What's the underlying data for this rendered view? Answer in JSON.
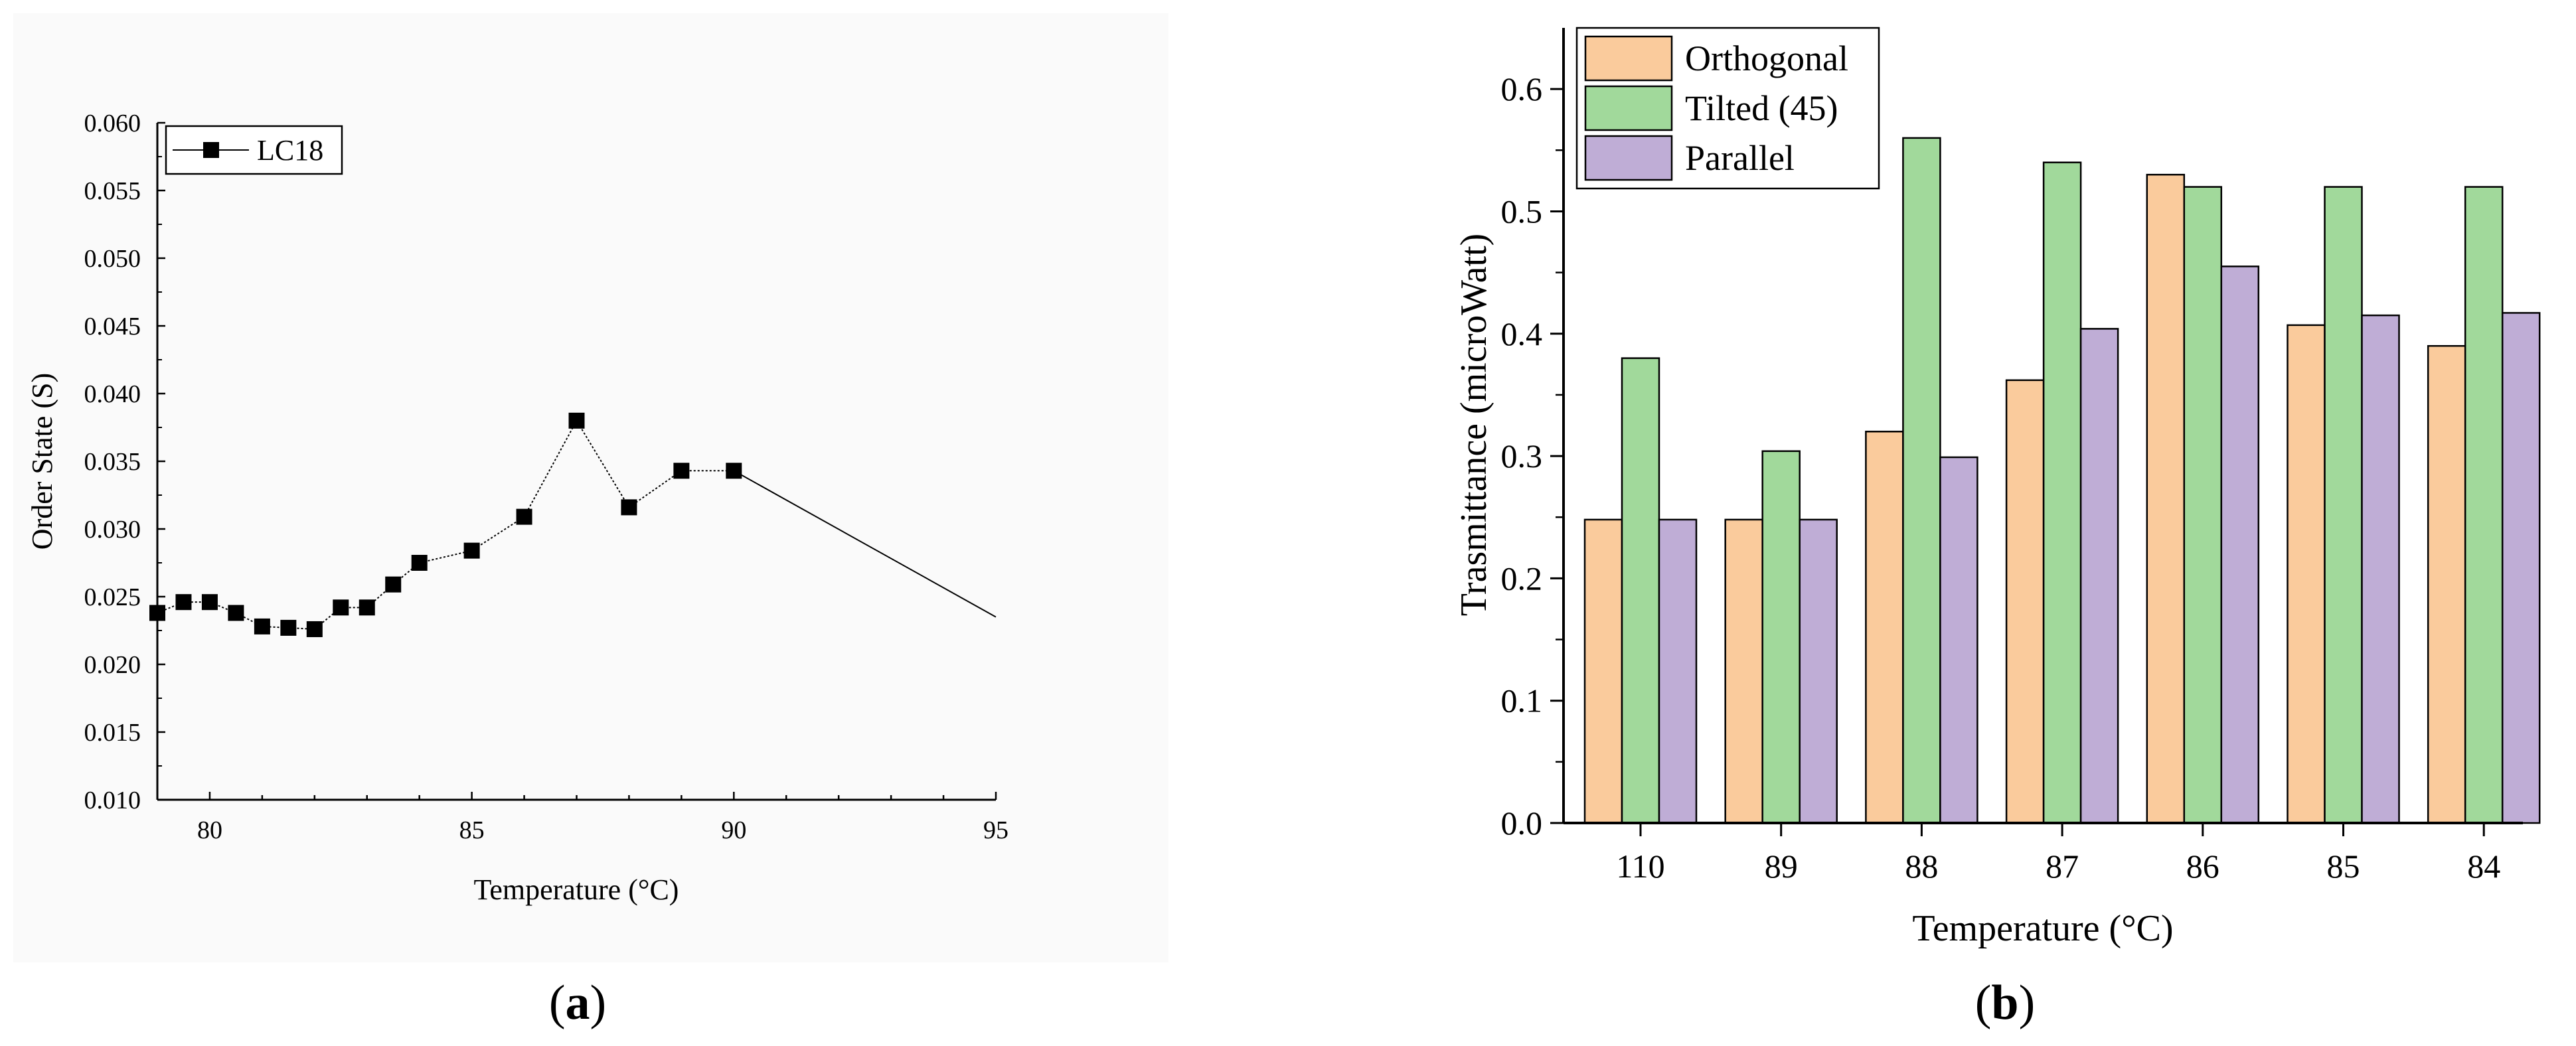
{
  "panels": [
    {
      "label_open": "(",
      "label_letter": "a",
      "label_close": ")"
    },
    {
      "label_open": "(",
      "label_letter": "b",
      "label_close": ")"
    }
  ],
  "chart_data": [
    {
      "type": "line",
      "panel": "a",
      "title": "",
      "xlabel": "Temperature (°C)",
      "ylabel": "Order State (S)",
      "xlim": [
        79,
        95
      ],
      "ylim": [
        0.01,
        0.06
      ],
      "xticks": [
        80,
        85,
        90,
        95
      ],
      "yticks": [
        0.01,
        0.015,
        0.02,
        0.025,
        0.03,
        0.035,
        0.04,
        0.045,
        0.05,
        0.055,
        0.06
      ],
      "ytick_labels": [
        "0.010",
        "0.015",
        "0.020",
        "0.025",
        "0.030",
        "0.035",
        "0.040",
        "0.045",
        "0.050",
        "0.055",
        "0.060"
      ],
      "legend_position": "top-left",
      "series": [
        {
          "name": "LC18",
          "marker": "square",
          "x": [
            79,
            79.5,
            80,
            80.5,
            81,
            81.5,
            82,
            82.5,
            83,
            83.5,
            84,
            85,
            86,
            87,
            88,
            89,
            90
          ],
          "y": [
            0.0238,
            0.0246,
            0.0246,
            0.0238,
            0.0228,
            0.0227,
            0.0226,
            0.0242,
            0.0242,
            0.0259,
            0.0275,
            0.0284,
            0.0309,
            0.038,
            0.0316,
            0.0343,
            0.0343
          ],
          "trailing_line_to": [
            95,
            0.0235
          ]
        }
      ]
    },
    {
      "type": "bar",
      "panel": "b",
      "title": "",
      "xlabel": "Temperature (°C)",
      "ylabel": "Trasmittance (microWatt)",
      "categories": [
        "110",
        "89",
        "88",
        "87",
        "86",
        "85",
        "84"
      ],
      "ylim": [
        0.0,
        0.65
      ],
      "yticks": [
        0.0,
        0.1,
        0.2,
        0.3,
        0.4,
        0.5,
        0.6
      ],
      "ytick_labels": [
        "0.0",
        "0.1",
        "0.2",
        "0.3",
        "0.4",
        "0.5",
        "0.6"
      ],
      "legend_position": "top-left",
      "series": [
        {
          "name": "Orthogonal",
          "color": "#FACB9C",
          "values": [
            0.248,
            0.248,
            0.32,
            0.362,
            0.53,
            0.407,
            0.39
          ]
        },
        {
          "name": "Tilted (45)",
          "color": "#A1D99B",
          "values": [
            0.38,
            0.304,
            0.56,
            0.54,
            0.52,
            0.52,
            0.52
          ]
        },
        {
          "name": "Parallel",
          "color": "#BFADD6",
          "values": [
            0.248,
            0.248,
            0.299,
            0.404,
            0.455,
            0.415,
            0.417
          ]
        }
      ]
    }
  ]
}
